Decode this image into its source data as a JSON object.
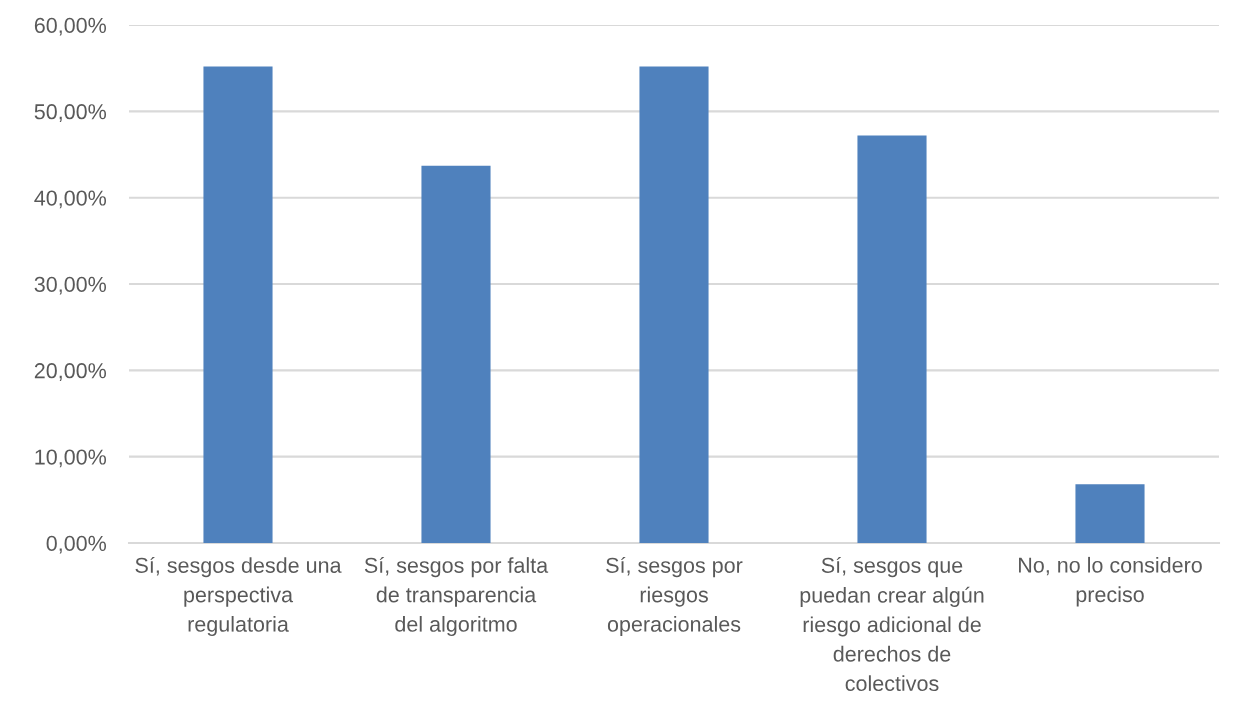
{
  "chart_data": {
    "type": "bar",
    "categories": [
      "Sí, sesgos desde una\nperspectiva\nregulatoria",
      "Sí, sesgos por falta\nde transparencia\ndel algoritmo",
      "Sí, sesgos por\nriesgos\noperacionales",
      "Sí, sesgos que\npuedan crear algún\nriesgo adicional de\nderechos de\ncolectivos",
      "No, no lo considero\npreciso"
    ],
    "values": [
      55.2,
      43.7,
      55.2,
      47.2,
      6.8
    ],
    "color": "#4f81bd",
    "ylim": [
      0,
      60
    ],
    "yticks": [
      {
        "value": 0,
        "label": "0,00%"
      },
      {
        "value": 10,
        "label": "10,00%"
      },
      {
        "value": 20,
        "label": "20,00%"
      },
      {
        "value": 30,
        "label": "30,00%"
      },
      {
        "value": 40,
        "label": "40,00%"
      },
      {
        "value": 50,
        "label": "50,00%"
      },
      {
        "value": 60,
        "label": "60,00%"
      }
    ],
    "grid": "y",
    "legend": false
  }
}
